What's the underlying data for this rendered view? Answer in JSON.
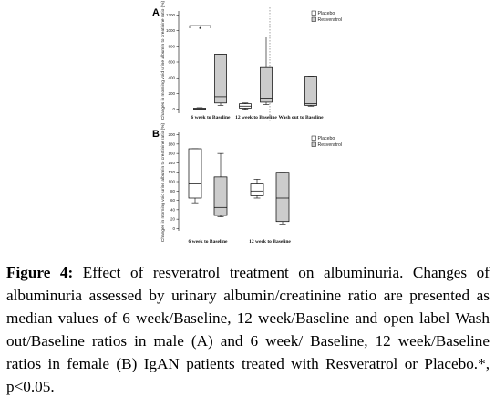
{
  "chart_data": [
    {
      "type": "box",
      "panel_label": "A",
      "ylabel": "Changes in morning void urine albumin to creatinine ratio (%)",
      "yticks": [
        0,
        200,
        400,
        600,
        800,
        1000,
        1200
      ],
      "ylim": [
        -50,
        1250
      ],
      "categories": [
        "6 week to Baseline",
        "12 week to Baseline",
        "Wash out to Baseline"
      ],
      "legend": [
        "Placebo",
        "Resveratrol"
      ],
      "legend_position": "top-right",
      "annotation": "*",
      "series": [
        {
          "name": "Placebo",
          "color": "#ffffff",
          "boxes": [
            {
              "category": "6 week to Baseline",
              "min": -10,
              "q1": -5,
              "median": 5,
              "q3": 15,
              "max": 20
            },
            {
              "category": "12 week to Baseline",
              "min": 0,
              "q1": 15,
              "median": 40,
              "q3": 70,
              "max": 80
            }
          ]
        },
        {
          "name": "Resveratrol",
          "color": "#cccccc",
          "boxes": [
            {
              "category": "6 week to Baseline",
              "min": 50,
              "q1": 80,
              "median": 160,
              "q3": 700,
              "max": 700
            },
            {
              "category": "12 week to Baseline",
              "min": 60,
              "q1": 90,
              "median": 140,
              "q3": 540,
              "max": 920
            },
            {
              "category": "Wash out to Baseline",
              "min": 40,
              "q1": 50,
              "median": 70,
              "q3": 420,
              "max": 420
            }
          ]
        }
      ]
    },
    {
      "type": "box",
      "panel_label": "B",
      "ylabel": "Changes in morning void urine albumin to creatinine ratio (%)",
      "yticks": [
        0,
        20,
        40,
        60,
        80,
        100,
        120,
        140,
        160,
        180,
        200
      ],
      "ylim": [
        -5,
        205
      ],
      "categories": [
        "6 week to Baseline",
        "12 week to Baseline"
      ],
      "legend": [
        "Placebo",
        "Resveratrol"
      ],
      "legend_position": "top-right",
      "series": [
        {
          "name": "Placebo",
          "color": "#ffffff",
          "boxes": [
            {
              "category": "6 week to Baseline",
              "min": 55,
              "q1": 65,
              "median": 95,
              "q3": 170,
              "max": 170
            },
            {
              "category": "12 week to Baseline",
              "min": 65,
              "q1": 70,
              "median": 80,
              "q3": 95,
              "max": 105
            }
          ]
        },
        {
          "name": "Resveratrol",
          "color": "#cccccc",
          "boxes": [
            {
              "category": "6 week to Baseline",
              "min": 25,
              "q1": 28,
              "median": 45,
              "q3": 110,
              "max": 160
            },
            {
              "category": "12 week to Baseline",
              "min": 10,
              "q1": 15,
              "median": 65,
              "q3": 120,
              "max": 120
            }
          ]
        }
      ]
    }
  ],
  "caption": {
    "lead": "Figure 4:",
    "text": " Effect of resveratrol treatment on albuminuria. Changes of albuminuria assessed by urinary albumin/creatinine ratio are presented as median values of 6 week/Baseline, 12 week/Baseline and open label Wash out/Baseline ratios in male (A) and 6 week/ Baseline, 12 week/Baseline ratios in female (B) IgAN patients treated with Resveratrol or Placebo.*, p<0.05."
  }
}
